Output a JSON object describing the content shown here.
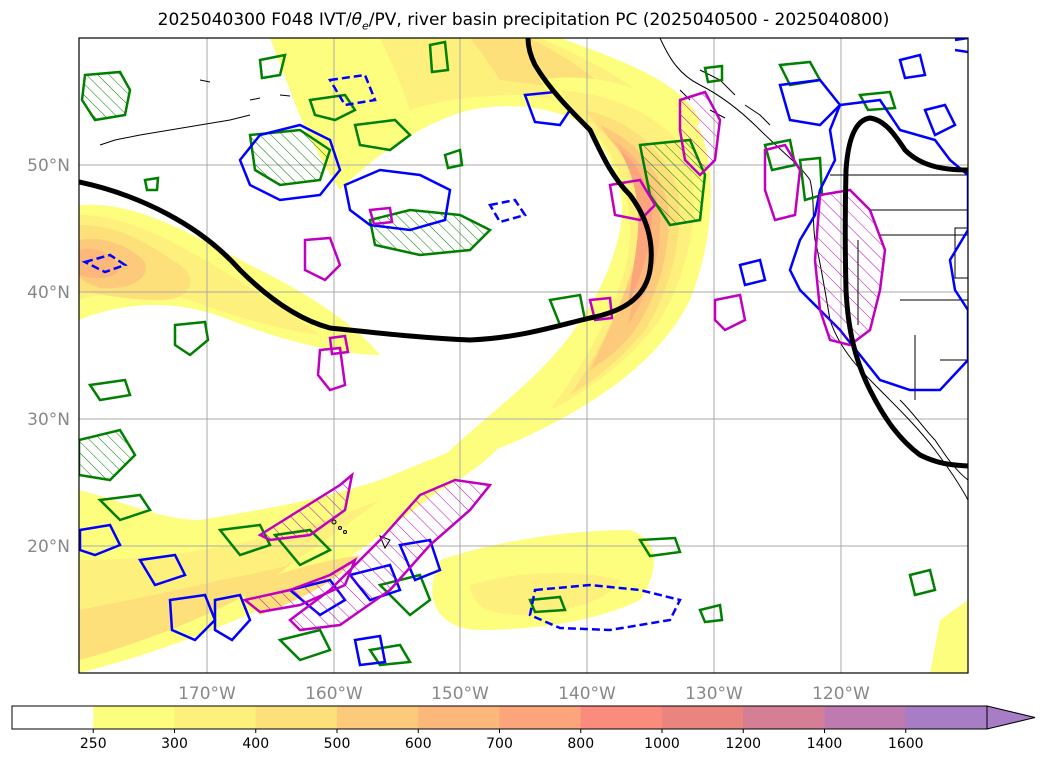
{
  "title": {
    "prefix": "2025040300 F048 IVT/",
    "theta": "θ",
    "theta_sub": "e",
    "suffix": "/PV, river basin precipitation PC (2025040500 - 2025040800)"
  },
  "axes": {
    "lat_labels": [
      "50°N",
      "40°N",
      "30°N",
      "20°N"
    ],
    "lon_labels": [
      "170°W",
      "160°W",
      "150°W",
      "140°W",
      "130°W",
      "120°W"
    ]
  },
  "colorbar": {
    "ticks": [
      "250",
      "300",
      "400",
      "500",
      "600",
      "700",
      "800",
      "1000",
      "1200",
      "1400",
      "1600"
    ],
    "colors": [
      "#ffffff",
      "#fefe7e",
      "#fdf07c",
      "#fde07a",
      "#fdc97a",
      "#fcb87a",
      "#fca47b",
      "#fb8b7c",
      "#e9847f",
      "#d47f96",
      "#bf7bb1",
      "#a77dc6"
    ],
    "extend": "max"
  },
  "legend_colors": {
    "jet_contour": "#000000",
    "blue_contour": "#0000ff",
    "green_contour": "#008000",
    "magenta_contour": "#c000c0"
  }
}
